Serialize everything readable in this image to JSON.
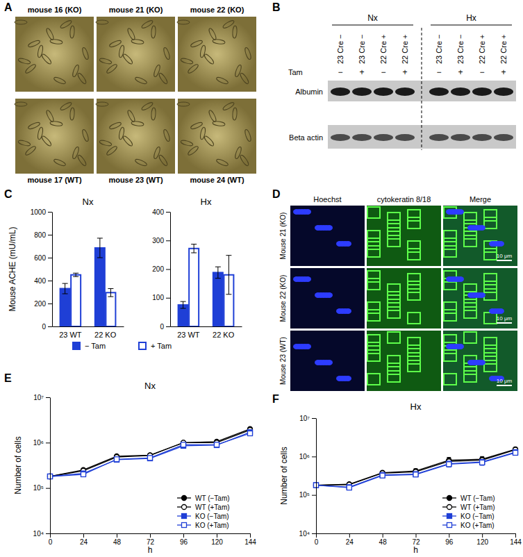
{
  "panels": [
    "A",
    "B",
    "C",
    "D",
    "E",
    "F"
  ],
  "panel_a": {
    "labels": [
      "mouse 16 (KO)",
      "mouse 21 (KO)",
      "mouse 22 (KO)",
      "mouse 17 (WT)",
      "mouse 23 (WT)",
      "mouse 24 (WT)"
    ]
  },
  "panel_b": {
    "groups": [
      "Nx",
      "Hx"
    ],
    "tam_label": "Tam",
    "lanes": [
      "23 Cre −",
      "23 Cre −",
      "22 Cre +",
      "22 Cre +",
      "23 Cre −",
      "23 Cre −",
      "22 Cre +",
      "22 Cre +"
    ],
    "tam": [
      "−",
      "+",
      "−",
      "+",
      "−",
      "+",
      "−",
      "+"
    ],
    "rows": [
      "Albumin",
      "Beta actin"
    ]
  },
  "panel_d": {
    "columns": [
      "Hoechst",
      "cytokeratin 8/18",
      "Merge"
    ],
    "rows": [
      "Mouse 21 (KO)",
      "Mouse 22 (KO)",
      "Mouse 23 (WT)"
    ],
    "scale_bar": "10 μm"
  },
  "chart_data": [
    {
      "type": "bar",
      "title": "Nx",
      "y_label": "Mouse ACHE (mU/mL)",
      "categories": [
        "23 WT",
        "22 KO"
      ],
      "series": [
        {
          "name": "− Tam",
          "color": "#1f3fd6",
          "marker": "filled",
          "values": [
            330,
            685
          ],
          "errors": [
            45,
            85
          ]
        },
        {
          "name": "+ Tam",
          "color": "#1f3fd6",
          "marker": "open",
          "values": [
            450,
            295
          ],
          "errors": [
            15,
            35
          ]
        }
      ],
      "ylim": [
        0,
        1000
      ],
      "yticks": [
        0,
        200,
        400,
        600,
        800,
        1000
      ],
      "legend": "bottom"
    },
    {
      "type": "bar",
      "title": "Hx",
      "categories": [
        "23 WT",
        "22 KO"
      ],
      "series": [
        {
          "color": "#1f3fd6",
          "marker": "filled",
          "values": [
            75,
            188
          ],
          "errors": [
            12,
            20
          ]
        },
        {
          "color": "#1f3fd6",
          "marker": "open",
          "values": [
            272,
            180
          ],
          "errors": [
            15,
            68
          ]
        }
      ],
      "ylim": [
        0,
        400
      ],
      "yticks": [
        0,
        100,
        200,
        300,
        400
      ]
    },
    {
      "type": "line",
      "title": "Nx",
      "x_label": "h",
      "y_label": "Number of cells",
      "log": "y",
      "x": [
        0,
        24,
        48,
        72,
        96,
        120,
        144
      ],
      "xlim": [
        0,
        144
      ],
      "xticks": [
        0,
        24,
        48,
        72,
        96,
        120,
        144
      ],
      "ylim": [
        10000,
        10000000
      ],
      "yticks": [
        {
          "value": 10000,
          "label": "10⁴"
        },
        {
          "value": 100000,
          "label": "10⁵"
        },
        {
          "value": 1000000,
          "label": "10⁶"
        },
        {
          "value": 10000000,
          "label": "10⁷"
        }
      ],
      "legend": "bottom-right",
      "series": [
        {
          "name": "WT (−Tam)",
          "color": "#000000",
          "marker": "circle-filled",
          "values": [
            180000,
            250000,
            500000,
            530000,
            1000000,
            1050000,
            2000000
          ],
          "errors": [
            0,
            15000,
            30000,
            30000,
            80000,
            90000,
            150000
          ]
        },
        {
          "name": "WT (+Tam)",
          "color": "#000000",
          "marker": "circle-open",
          "values": [
            180000,
            240000,
            480000,
            520000,
            1000000,
            1000000,
            1900000
          ],
          "errors": [
            0,
            15000,
            30000,
            30000,
            80000,
            90000,
            150000
          ]
        },
        {
          "name": "KO (−Tam)",
          "color": "#1f3fd6",
          "marker": "square-filled",
          "values": [
            180000,
            210000,
            420000,
            450000,
            850000,
            880000,
            1700000
          ],
          "errors": [
            0,
            12000,
            25000,
            25000,
            70000,
            80000,
            130000
          ]
        },
        {
          "name": "KO (+Tam)",
          "color": "#1f3fd6",
          "marker": "square-open",
          "values": [
            180000,
            200000,
            430000,
            460000,
            900000,
            900000,
            1600000
          ],
          "errors": [
            0,
            12000,
            25000,
            25000,
            70000,
            80000,
            130000
          ]
        }
      ]
    },
    {
      "type": "line",
      "title": "Hx",
      "x_label": "h",
      "y_label": "Number of cells",
      "log": "y",
      "x": [
        0,
        24,
        48,
        72,
        96,
        120,
        144
      ],
      "xlim": [
        0,
        144
      ],
      "xticks": [
        0,
        24,
        48,
        72,
        96,
        120,
        144
      ],
      "ylim": [
        10000,
        10000000
      ],
      "yticks": [
        {
          "value": 10000,
          "label": "10⁴"
        },
        {
          "value": 100000,
          "label": "10⁵"
        },
        {
          "value": 1000000,
          "label": "10⁶"
        },
        {
          "value": 10000000,
          "label": "10⁷"
        }
      ],
      "legend": "bottom-right",
      "series": [
        {
          "name": "WT (−Tam)",
          "color": "#000000",
          "marker": "circle-filled",
          "values": [
            180000,
            190000,
            380000,
            420000,
            800000,
            850000,
            1550000
          ],
          "errors": [
            0,
            15000,
            30000,
            60000,
            150000,
            150000,
            150000
          ]
        },
        {
          "name": "WT (+Tam)",
          "color": "#000000",
          "marker": "circle-open",
          "values": [
            180000,
            185000,
            370000,
            400000,
            750000,
            800000,
            1500000
          ],
          "errors": [
            0,
            15000,
            30000,
            50000,
            120000,
            130000,
            150000
          ]
        },
        {
          "name": "KO (−Tam)",
          "color": "#1f3fd6",
          "marker": "square-filled",
          "values": [
            180000,
            160000,
            330000,
            350000,
            650000,
            720000,
            1300000
          ],
          "errors": [
            0,
            12000,
            25000,
            40000,
            100000,
            110000,
            130000
          ]
        },
        {
          "name": "KO (+Tam)",
          "color": "#1f3fd6",
          "marker": "square-open",
          "values": [
            180000,
            155000,
            320000,
            340000,
            630000,
            700000,
            1250000
          ],
          "errors": [
            0,
            12000,
            25000,
            40000,
            100000,
            110000,
            130000
          ]
        }
      ]
    }
  ]
}
